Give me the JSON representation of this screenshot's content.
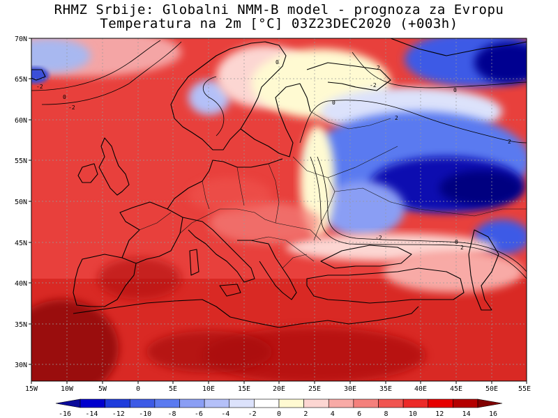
{
  "header": {
    "line1": "RHMZ Srbije: Globalni NMM-B model - prognoza za Evropu",
    "line2": "Temperatura na 2m [°C] 03Z23DEC2020 (+003h)"
  },
  "map": {
    "projection": "lat-lon",
    "lon_range": [
      -15,
      55
    ],
    "lat_range": [
      28,
      70
    ],
    "lon_ticks": [
      "15W",
      "10W",
      "5W",
      "0",
      "5E",
      "10E",
      "15E",
      "20E",
      "25E",
      "30E",
      "35E",
      "40E",
      "45E",
      "50E",
      "55E"
    ],
    "lat_ticks": [
      "70N",
      "65N",
      "60N",
      "55N",
      "50N",
      "45N",
      "40N",
      "35N",
      "30N"
    ],
    "gridlines": "dashed",
    "contour_labels": [
      "-2",
      "0",
      "-2",
      "0",
      "2",
      "0",
      "2",
      "-2",
      "0",
      "2",
      "-2",
      "0",
      "2"
    ]
  },
  "colorbar": {
    "labels": [
      "-16",
      "-14",
      "-12",
      "-10",
      "-8",
      "-6",
      "-4",
      "-2",
      "0",
      "2",
      "4",
      "6",
      "8",
      "10",
      "12",
      "14",
      "16"
    ],
    "colors": [
      "#0a0a9a",
      "#0000cd",
      "#1e3cdc",
      "#3c5ae6",
      "#5a7af0",
      "#8a9ef4",
      "#b4c0f8",
      "#dce2fb",
      "#ffffff",
      "#fffad2",
      "#fcd6d2",
      "#f8aaa6",
      "#f4807c",
      "#f05550",
      "#ec2a28",
      "#e60000",
      "#b40000",
      "#800000"
    ]
  },
  "colors": {
    "ocean_warm": "#e4302c",
    "deep_red": "#b40a0a",
    "cold_blue": "#2a3acc",
    "deep_blue": "#000080",
    "neutral": "#fffad2"
  }
}
